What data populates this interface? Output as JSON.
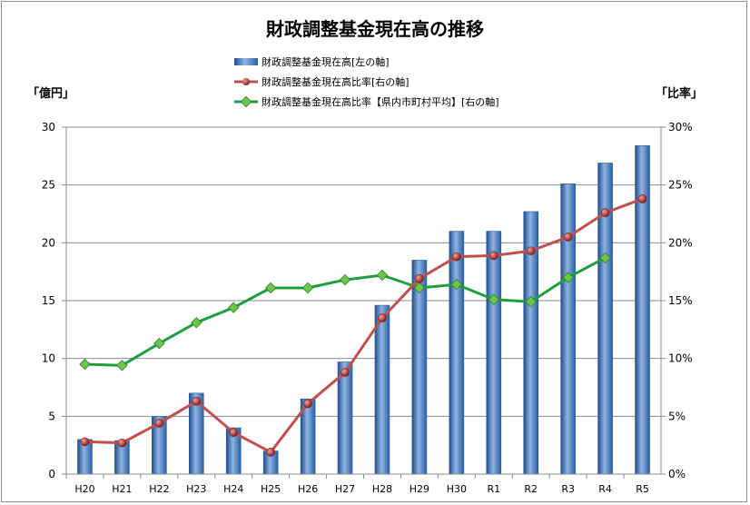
{
  "chart_data": {
    "type": "bar",
    "title": "財政調整基金現在高の推移",
    "y_left_unit": "「億円」",
    "y_right_unit": "「比率」",
    "categories": [
      "H20",
      "H21",
      "H22",
      "H23",
      "H24",
      "H25",
      "H26",
      "H27",
      "H28",
      "H29",
      "H30",
      "R1",
      "R2",
      "R3",
      "R4",
      "R5"
    ],
    "y_left": {
      "min": 0,
      "max": 30,
      "ticks": [
        "0",
        "5",
        "10",
        "15",
        "20",
        "25",
        "30"
      ]
    },
    "y_right": {
      "min": 0,
      "max": 30,
      "ticks": [
        "0%",
        "5%",
        "10%",
        "15%",
        "20%",
        "25%",
        "30%"
      ]
    },
    "grid": true,
    "legend_position": "top-center",
    "series": [
      {
        "name": "財政調整基金現在高[左の軸]",
        "kind": "bar",
        "axis": "left",
        "color": "#4a7ebb",
        "values": [
          3.0,
          2.9,
          5.0,
          7.0,
          4.0,
          2.0,
          6.5,
          9.7,
          14.6,
          18.5,
          21.0,
          21.0,
          22.7,
          25.1,
          26.9,
          28.4
        ]
      },
      {
        "name": "財政調整基金現在高比率[右の軸]",
        "kind": "line",
        "axis": "right",
        "color": "#c0504d",
        "values": [
          2.8,
          2.7,
          4.4,
          6.3,
          3.6,
          1.9,
          6.1,
          8.8,
          13.5,
          16.9,
          18.8,
          18.9,
          19.3,
          20.5,
          22.6,
          23.8
        ]
      },
      {
        "name": "財政調整基金現在高比率【県内市町村平均】[右の軸]",
        "kind": "line",
        "axis": "right",
        "color": "#1e9e3e",
        "values": [
          9.5,
          9.4,
          11.3,
          13.1,
          14.4,
          16.1,
          16.1,
          16.8,
          17.2,
          16.1,
          16.4,
          15.1,
          14.9,
          17.0,
          18.7,
          null
        ]
      }
    ]
  }
}
